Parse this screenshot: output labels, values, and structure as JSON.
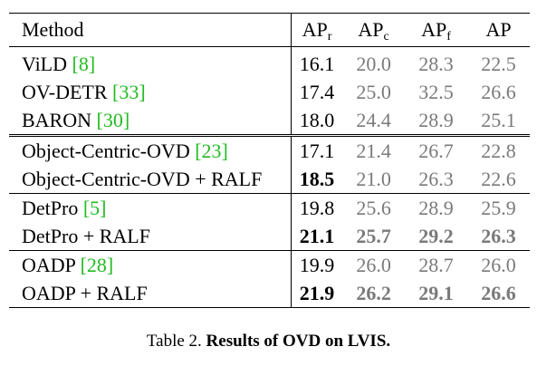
{
  "header": {
    "method": "Method",
    "apr_main": "AP",
    "apr_sub": "r",
    "apc_main": "AP",
    "apc_sub": "c",
    "apf_main": "AP",
    "apf_sub": "f",
    "ap": "AP"
  },
  "rows": [
    {
      "name": "ViLD ",
      "cite": "[8]",
      "apr": "16.1",
      "apc": "20.0",
      "apf": "28.3",
      "ap": "22.5"
    },
    {
      "name": "OV-DETR ",
      "cite": "[33]",
      "apr": "17.4",
      "apc": "25.0",
      "apf": "32.5",
      "ap": "26.6"
    },
    {
      "name": "BARON ",
      "cite": "[30]",
      "apr": "18.0",
      "apc": "24.4",
      "apf": "28.9",
      "ap": "25.1"
    },
    {
      "name": "Object-Centric-OVD ",
      "cite": "[23]",
      "apr": "17.1",
      "apc": "21.4",
      "apf": "26.7",
      "ap": "22.8"
    },
    {
      "name": "Object-Centric-OVD + RALF",
      "cite": "",
      "apr": "18.5",
      "apc": "21.0",
      "apf": "26.3",
      "ap": "22.6"
    },
    {
      "name": "DetPro ",
      "cite": "[5]",
      "apr": "19.8",
      "apc": "25.6",
      "apf": "28.9",
      "ap": "25.9"
    },
    {
      "name": "DetPro + RALF",
      "cite": "",
      "apr": "21.1",
      "apc": "25.7",
      "apf": "29.2",
      "ap": "26.3"
    },
    {
      "name": "OADP ",
      "cite": "[28]",
      "apr": "19.9",
      "apc": "26.0",
      "apf": "28.7",
      "ap": "26.0"
    },
    {
      "name": "OADP + RALF",
      "cite": "",
      "apr": "21.9",
      "apc": "26.2",
      "apf": "29.1",
      "ap": "26.6"
    }
  ],
  "caption": {
    "prefix": "Table 2. ",
    "bold": "Results of OVD on LVIS."
  }
}
